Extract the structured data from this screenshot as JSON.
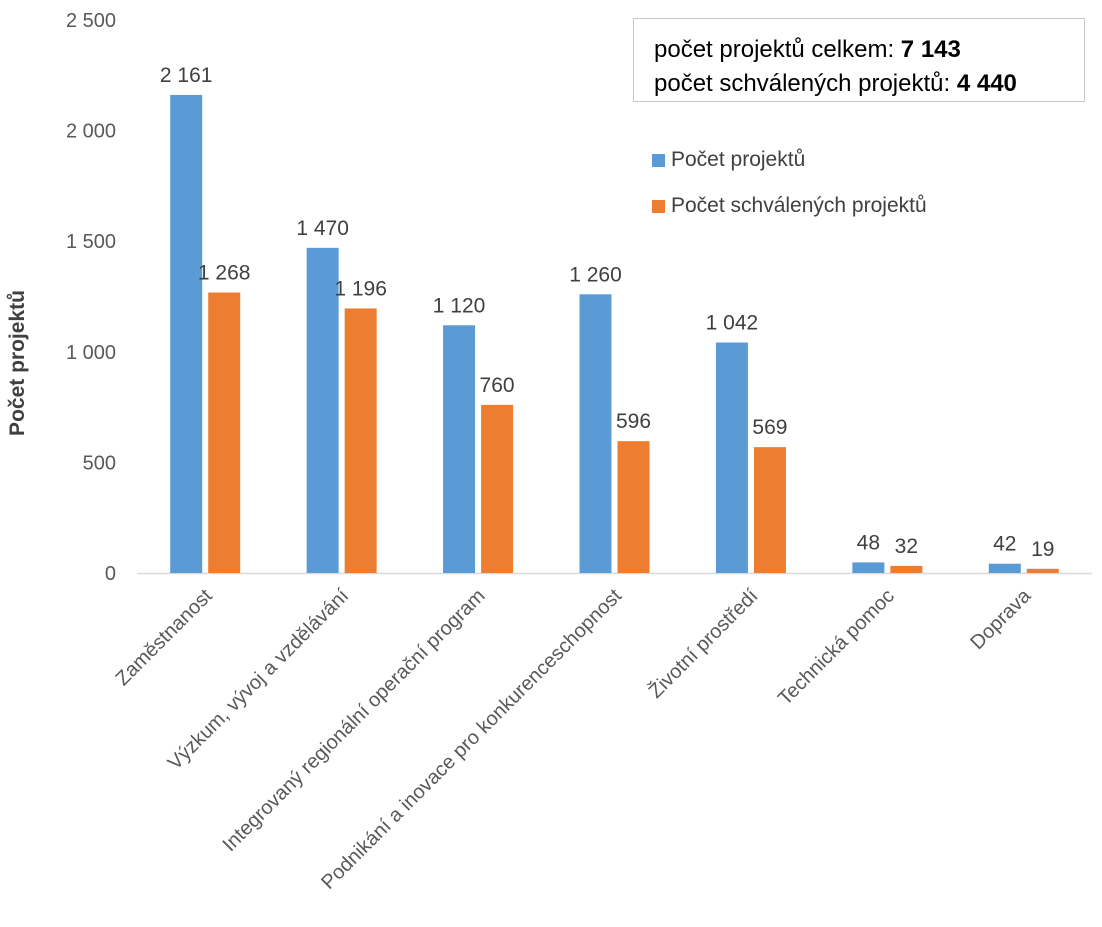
{
  "chart_data": {
    "type": "bar",
    "ylabel": "Počet projektů",
    "xlabel": "",
    "ylim": [
      0,
      2500
    ],
    "y_ticks": [
      0,
      500,
      1000,
      1500,
      2000,
      2500
    ],
    "y_tick_labels": [
      "0",
      "500",
      "1 000",
      "1 500",
      "2 000",
      "2 500"
    ],
    "categories": [
      "Zaměstnanost",
      "Výzkum, vývoj a vzdělávání",
      "Integrovaný regionální operační program",
      "Podnikání a inovace pro konkurenceschopnost",
      "Životní prostředí",
      "Technická pomoc",
      "Doprava"
    ],
    "series": [
      {
        "name": "Počet projektů",
        "color": "#5b9bd5",
        "values": [
          2161,
          1470,
          1120,
          1260,
          1042,
          48,
          42
        ],
        "labels": [
          "2 161",
          "1 470",
          "1 120",
          "1 260",
          "1 042",
          "48",
          "42"
        ]
      },
      {
        "name": "Počet schválených projektů",
        "color": "#ed7d31",
        "values": [
          1268,
          1196,
          760,
          596,
          569,
          32,
          19
        ],
        "labels": [
          "1 268",
          "1 196",
          "760",
          "596",
          "569",
          "32",
          "19"
        ]
      }
    ],
    "legend_position": "right",
    "grid": false
  },
  "summary": {
    "total_label": "počet projektů celkem: ",
    "total_value": "7 143",
    "approved_label": "počet schválených projektů: ",
    "approved_value": "4 440"
  }
}
